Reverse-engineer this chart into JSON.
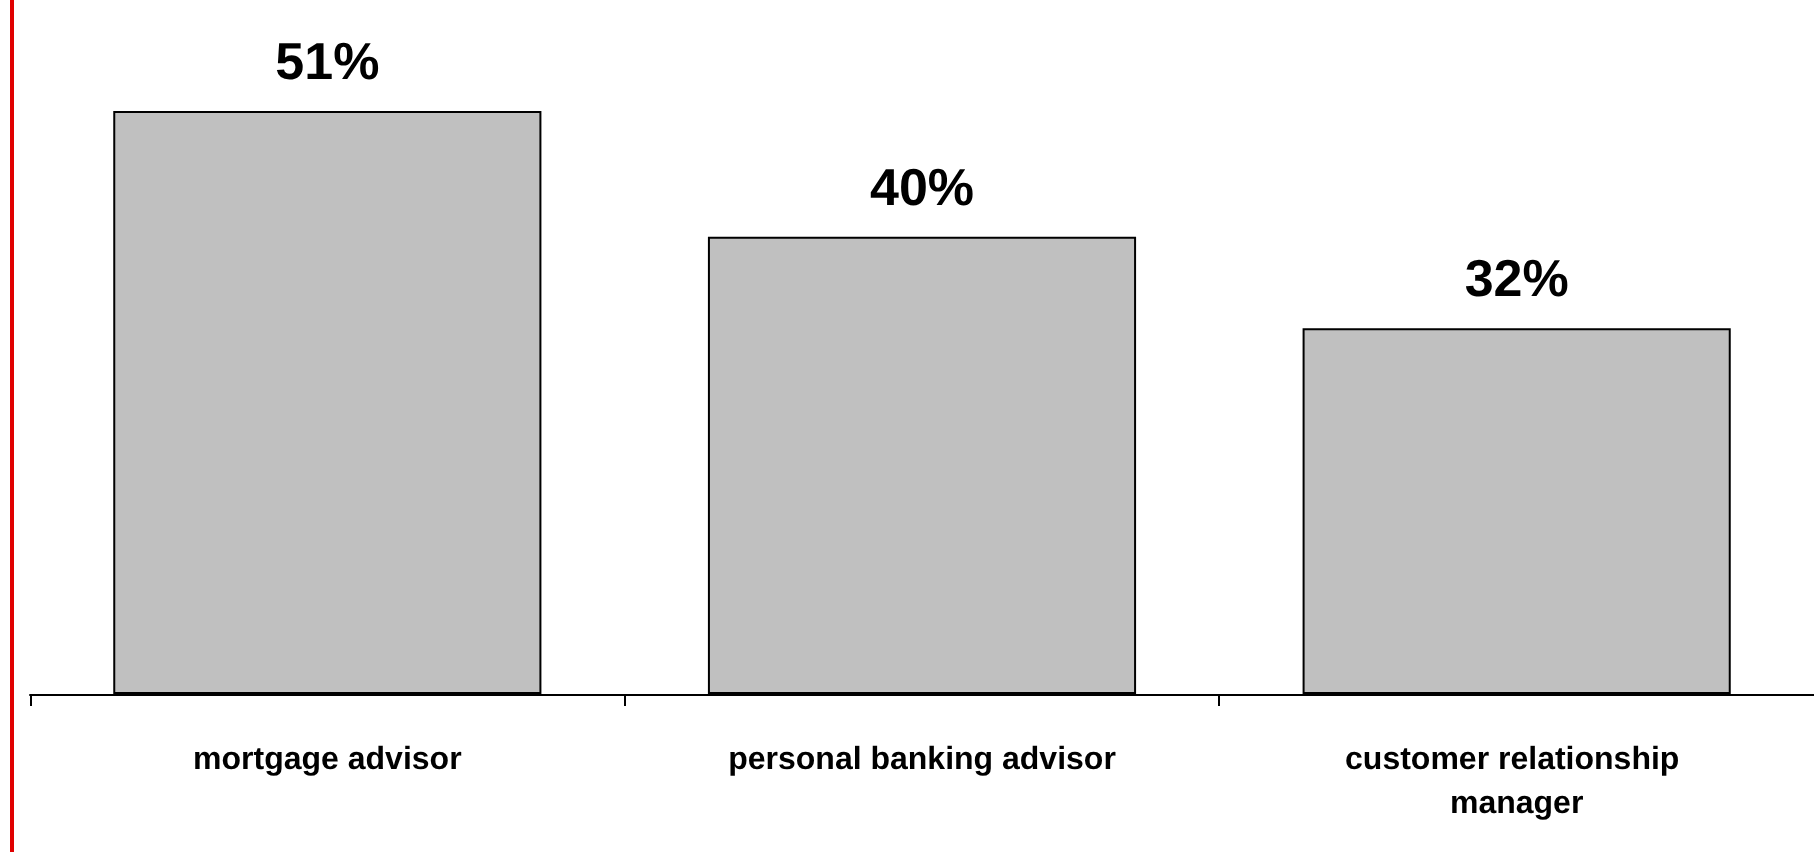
{
  "chart_data": {
    "type": "bar",
    "categories": [
      "mortgage advisor",
      "personal banking advisor",
      "customer relationship manager"
    ],
    "values": [
      51,
      40,
      32
    ],
    "color": "#c0c0c0",
    "value_labels": [
      "51%",
      "40%",
      "32%"
    ]
  }
}
